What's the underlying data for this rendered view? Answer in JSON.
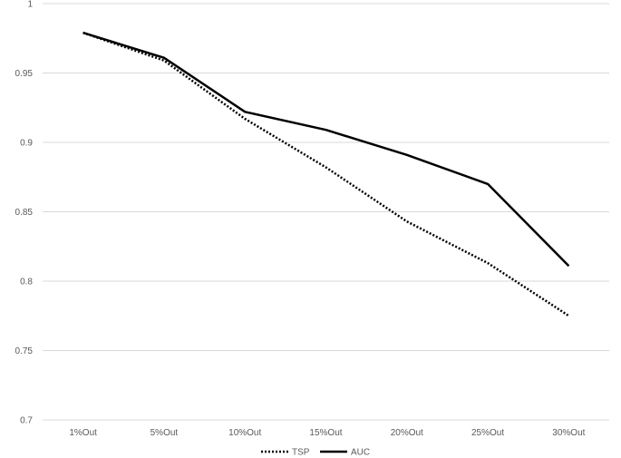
{
  "chart_data": {
    "type": "line",
    "categories": [
      "1%Out",
      "5%Out",
      "10%Out",
      "15%Out",
      "20%Out",
      "25%Out",
      "30%Out"
    ],
    "series": [
      {
        "name": "TSP",
        "values": [
          0.979,
          0.959,
          0.917,
          0.882,
          0.843,
          0.813,
          0.775
        ],
        "color": "#000000",
        "style": "dotted"
      },
      {
        "name": "AUC",
        "values": [
          0.979,
          0.961,
          0.922,
          0.909,
          0.891,
          0.87,
          0.811
        ],
        "color": "#000000",
        "style": "solid"
      }
    ],
    "yticks": [
      "0.7",
      "0.75",
      "0.8",
      "0.85",
      "0.9",
      "0.95",
      "1"
    ],
    "ylim": [
      0.7,
      1.0
    ],
    "grid": true,
    "gridColor": "#d9d9d9",
    "legend": "bottom-center"
  }
}
